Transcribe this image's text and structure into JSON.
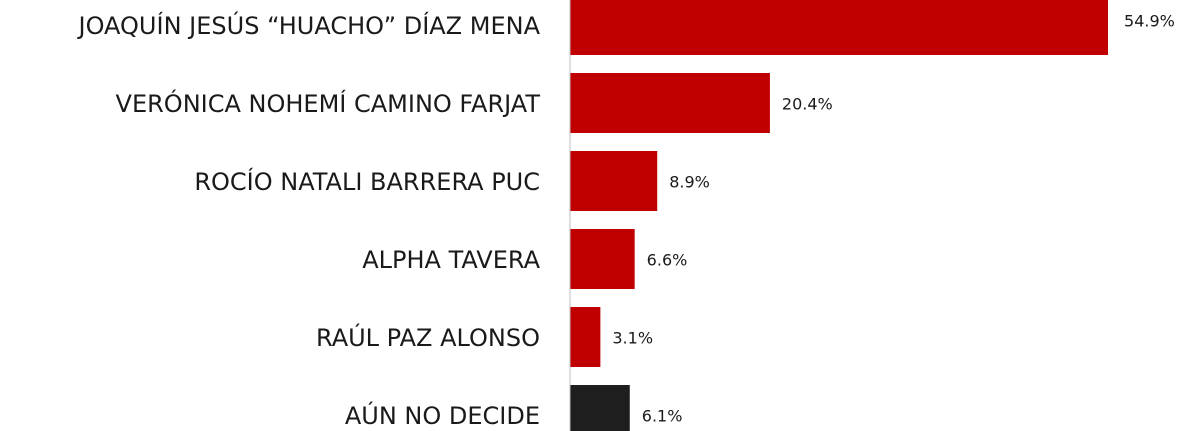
{
  "chart_data": {
    "type": "bar",
    "orientation": "horizontal",
    "categories": [
      "JOAQUÍN JESÚS “HUACHO” DÍAZ MENA",
      "VERÓNICA NOHEMÍ CAMINO FARJAT",
      "ROCÍO NATALI BARRERA PUC",
      "ALPHA TAVERA",
      "RAÚL PAZ ALONSO",
      "AÚN NO DECIDE"
    ],
    "values": [
      54.9,
      20.4,
      8.9,
      6.6,
      3.1,
      6.1
    ],
    "value_labels": [
      "54.9%",
      "20.4%",
      "8.9%",
      "6.6%",
      "3.1%",
      "6.1%"
    ],
    "colors": [
      "#c00000",
      "#c00000",
      "#c00000",
      "#c00000",
      "#c00000",
      "#1e1e1e"
    ],
    "xlim": [
      0,
      60
    ]
  }
}
